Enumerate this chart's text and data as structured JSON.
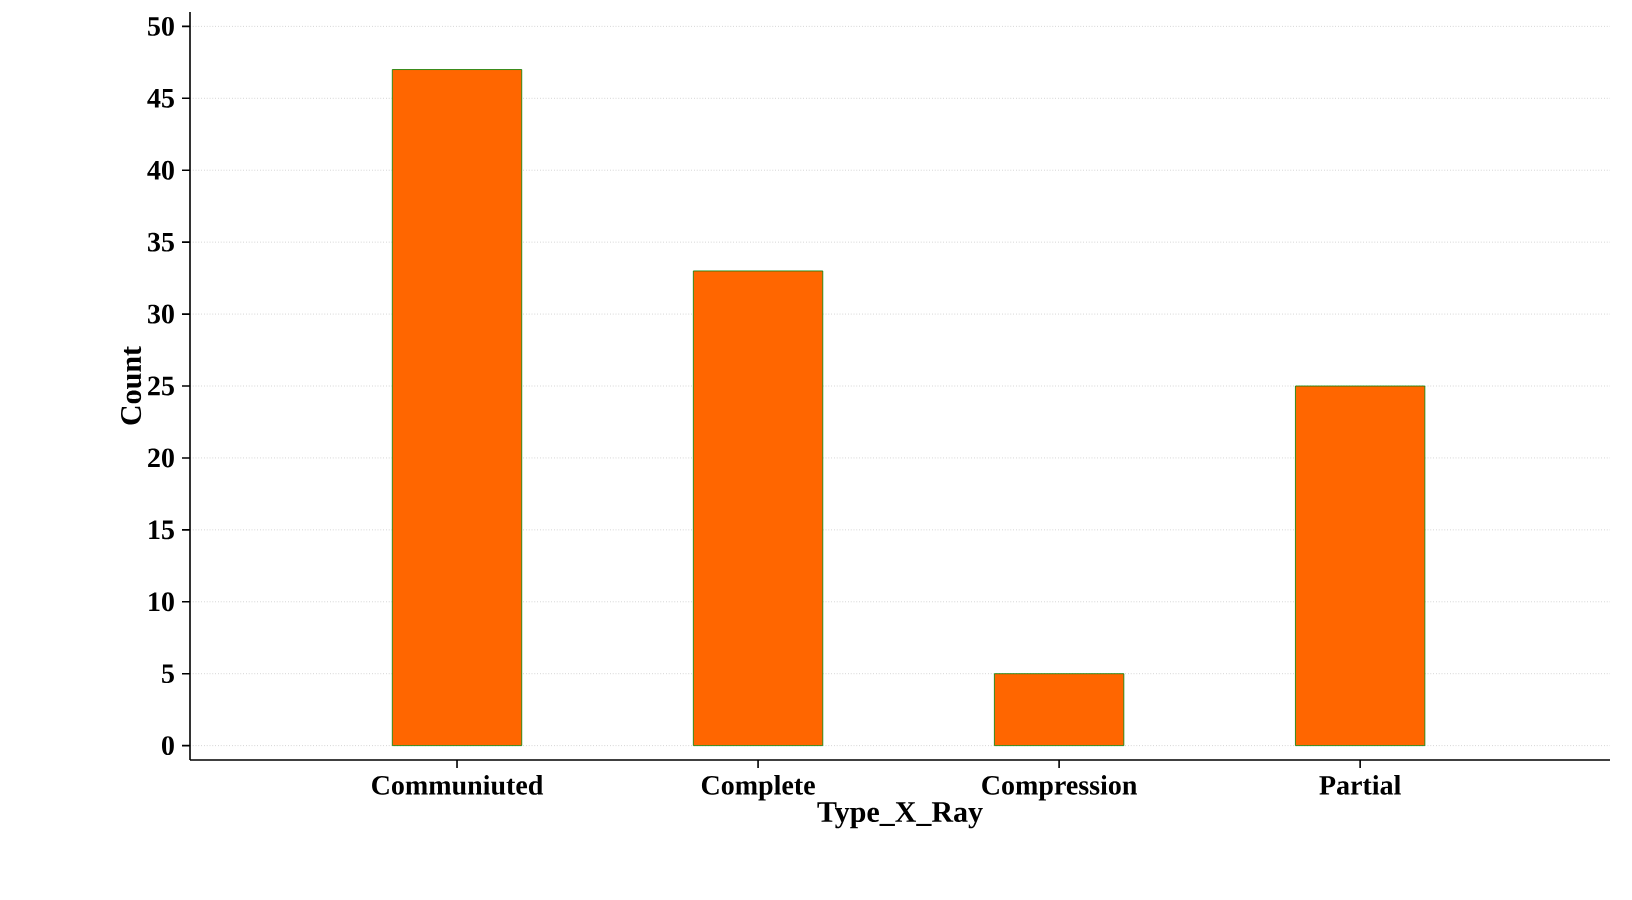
{
  "chart_data": {
    "type": "bar",
    "xlabel": "Type_X_Ray",
    "ylabel": "Count",
    "categories": [
      "Communiuted",
      "Complete",
      "Compression",
      "Partial"
    ],
    "values": [
      47,
      33,
      5,
      25
    ],
    "color": "#ff6600",
    "ylim": [
      -1,
      51
    ],
    "yticks": [
      0,
      5,
      10,
      15,
      20,
      25,
      30,
      35,
      40,
      45,
      50
    ],
    "grid": "y"
  }
}
